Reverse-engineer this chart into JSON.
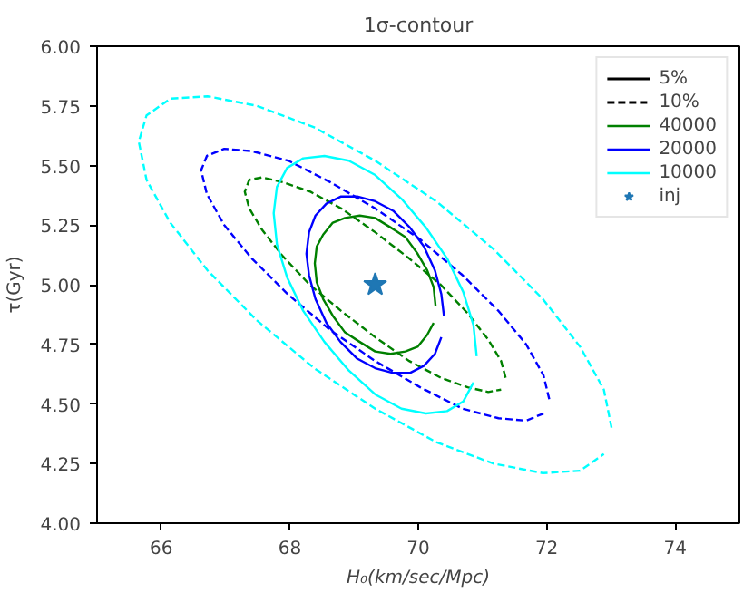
{
  "chart_data": {
    "type": "line",
    "title": "1σ-contour",
    "xlabel": "H₀(km/sec/Mpc)",
    "ylabel": "τ(Gyr)",
    "xlim": [
      65,
      75
    ],
    "ylim": [
      4,
      6
    ],
    "xticks": [
      66,
      68,
      70,
      72,
      74
    ],
    "yticks": [
      {
        "value": 4,
        "label": "4.00"
      },
      {
        "value": 4.25,
        "label": "4.25"
      },
      {
        "value": 4.5,
        "label": "4.50"
      },
      {
        "value": 4.75,
        "label": "4.75"
      },
      {
        "value": 5,
        "label": "5.00"
      },
      {
        "value": 5.25,
        "label": "5.25"
      },
      {
        "value": 5.5,
        "label": "5.50"
      },
      {
        "value": 5.75,
        "label": "5.75"
      },
      {
        "value": 6,
        "label": "6.00"
      }
    ],
    "grid": false,
    "legend": "top right",
    "annotations": [
      "5%",
      "10%"
    ],
    "series": [
      {
        "name": "40000",
        "color": "#008000",
        "line_style": "solid",
        "x": [
          70.27,
          70.24,
          70.14,
          69.99,
          69.8,
          69.57,
          69.33,
          69.09,
          68.86,
          68.67,
          68.52,
          68.42,
          68.39,
          68.42,
          68.52,
          68.67,
          68.86,
          69.09,
          69.33,
          69.57,
          69.8,
          69.99,
          70.14,
          70.24
        ],
        "values": [
          4.91,
          4.99,
          5.06,
          5.13,
          5.2,
          5.24,
          5.28,
          5.29,
          5.28,
          5.26,
          5.21,
          5.16,
          5.09,
          5.01,
          4.94,
          4.87,
          4.8,
          4.76,
          4.72,
          4.71,
          4.72,
          4.74,
          4.79,
          4.84
        ]
      },
      {
        "color": "#008000",
        "line_style": "dashed",
        "x": [
          71.36,
          71.29,
          71.09,
          70.77,
          70.35,
          69.86,
          69.33,
          68.8,
          68.32,
          67.89,
          67.57,
          67.37,
          67.3,
          67.37,
          67.57,
          67.89,
          68.31,
          68.8,
          69.33,
          69.86,
          70.35,
          70.77,
          71.09,
          71.29
        ],
        "values": [
          4.61,
          4.68,
          4.77,
          4.88,
          5.0,
          5.11,
          5.22,
          5.32,
          5.39,
          5.43,
          5.45,
          5.44,
          5.39,
          5.32,
          5.23,
          5.12,
          5.0,
          4.89,
          4.78,
          4.68,
          4.61,
          4.57,
          4.55,
          4.56
        ]
      },
      {
        "name": "20000",
        "color": "#0000ff",
        "line_style": "solid",
        "x": [
          70.4,
          70.36,
          70.26,
          70.09,
          69.87,
          69.61,
          69.33,
          69.05,
          68.8,
          68.57,
          68.4,
          68.3,
          68.26,
          68.3,
          68.4,
          68.57,
          68.79,
          69.05,
          69.33,
          69.61,
          69.87,
          70.09,
          70.26,
          70.36
        ],
        "values": [
          4.87,
          4.96,
          5.06,
          5.16,
          5.24,
          5.31,
          5.35,
          5.37,
          5.37,
          5.34,
          5.29,
          5.22,
          5.13,
          5.04,
          4.94,
          4.84,
          4.76,
          4.69,
          4.65,
          4.63,
          4.63,
          4.66,
          4.71,
          4.78
        ]
      },
      {
        "color": "#0000ff",
        "line_style": "dashed",
        "x": [
          72.04,
          71.95,
          71.68,
          71.25,
          70.69,
          70.03,
          69.33,
          68.63,
          67.98,
          67.41,
          66.98,
          66.71,
          66.62,
          66.71,
          66.98,
          67.41,
          67.97,
          68.63,
          69.33,
          70.03,
          70.69,
          71.25,
          71.68,
          71.95
        ],
        "values": [
          4.52,
          4.62,
          4.75,
          4.89,
          5.04,
          5.19,
          5.32,
          5.43,
          5.52,
          5.56,
          5.57,
          5.54,
          5.48,
          5.38,
          5.25,
          5.11,
          4.96,
          4.81,
          4.68,
          4.57,
          4.48,
          4.44,
          4.43,
          4.46
        ]
      },
      {
        "name": "10000",
        "color": "#00ffff",
        "line_style": "solid",
        "x": [
          70.91,
          70.86,
          70.7,
          70.45,
          70.12,
          69.74,
          69.33,
          68.92,
          68.54,
          68.21,
          67.96,
          67.8,
          67.75,
          67.8,
          67.96,
          68.21,
          68.54,
          68.92,
          69.33,
          69.74,
          70.12,
          70.45,
          70.7,
          70.86
        ],
        "values": [
          4.7,
          4.83,
          4.97,
          5.11,
          5.24,
          5.36,
          5.46,
          5.52,
          5.54,
          5.53,
          5.49,
          5.41,
          5.3,
          5.17,
          5.03,
          4.89,
          4.76,
          4.64,
          4.54,
          4.48,
          4.46,
          4.47,
          4.51,
          4.59
        ]
      },
      {
        "color": "#00ffff",
        "line_style": "dashed",
        "x": [
          73.01,
          72.89,
          72.52,
          71.94,
          71.17,
          70.28,
          69.33,
          68.38,
          67.49,
          66.72,
          66.14,
          65.77,
          65.65,
          65.77,
          66.14,
          66.72,
          67.49,
          68.38,
          69.33,
          70.28,
          71.17,
          71.94,
          72.52,
          72.89
        ],
        "values": [
          4.4,
          4.56,
          4.74,
          4.94,
          5.15,
          5.35,
          5.52,
          5.66,
          5.75,
          5.79,
          5.78,
          5.71,
          5.6,
          5.44,
          5.26,
          5.06,
          4.85,
          4.65,
          4.48,
          4.34,
          4.25,
          4.21,
          4.22,
          4.29
        ]
      },
      {
        "name": "inj",
        "type": "scatter",
        "marker": "star",
        "color": "#1f77b4",
        "x": [
          69.33
        ],
        "values": [
          5.0
        ]
      }
    ]
  }
}
